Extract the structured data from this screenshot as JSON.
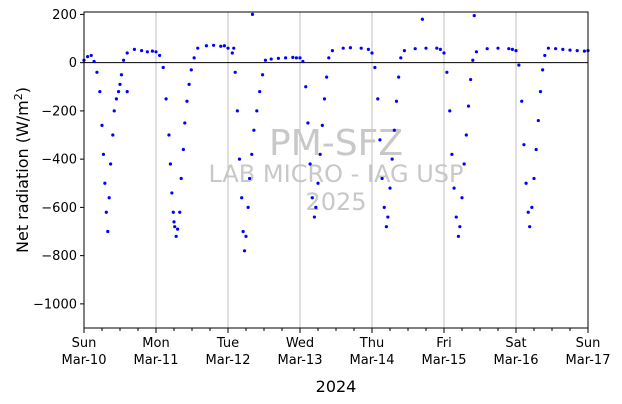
{
  "chart_data": {
    "type": "scatter",
    "title": "",
    "xlabel": "2024",
    "ylabel_main": "Net radiation (W/m",
    "ylabel_sup": "2",
    "ylabel_tail": ")",
    "xlim": [
      0,
      7
    ],
    "ylim": [
      -1100,
      210
    ],
    "x_ticks": [
      {
        "x": 0,
        "day": "Sun",
        "date": "Mar-10"
      },
      {
        "x": 1,
        "day": "Mon",
        "date": "Mar-11"
      },
      {
        "x": 2,
        "day": "Tue",
        "date": "Mar-12"
      },
      {
        "x": 3,
        "day": "Wed",
        "date": "Mar-13"
      },
      {
        "x": 4,
        "day": "Thu",
        "date": "Mar-14"
      },
      {
        "x": 5,
        "day": "Fri",
        "date": "Mar-15"
      },
      {
        "x": 6,
        "day": "Sat",
        "date": "Mar-16"
      },
      {
        "x": 7,
        "day": "Sun",
        "date": "Mar-17"
      }
    ],
    "y_ticks": [
      200,
      0,
      -200,
      -400,
      -600,
      -800,
      -1000
    ],
    "y_tick_labels": [
      "200",
      "0",
      "−200",
      "−400",
      "−600",
      "−800",
      "−1000"
    ],
    "grid": "vertical-major",
    "zero_line": true,
    "marker_color": "#0000ff",
    "watermark": {
      "line1": "PM-SFZ",
      "line2": "LAB MICRO - IAG USP",
      "line3": "2025"
    },
    "series": [
      {
        "values": [
          [
            0.0,
            10
          ],
          [
            0.05,
            25
          ],
          [
            0.1,
            30
          ],
          [
            0.14,
            5
          ],
          [
            0.18,
            -40
          ],
          [
            0.22,
            -120
          ],
          [
            0.25,
            -260
          ],
          [
            0.27,
            -380
          ],
          [
            0.29,
            -500
          ],
          [
            0.31,
            -620
          ],
          [
            0.33,
            -700
          ],
          [
            0.35,
            -560
          ],
          [
            0.37,
            -420
          ],
          [
            0.4,
            -300
          ],
          [
            0.42,
            -200
          ],
          [
            0.45,
            -150
          ],
          [
            0.48,
            -120
          ],
          [
            0.5,
            -90
          ],
          [
            0.52,
            -50
          ],
          [
            0.55,
            10
          ],
          [
            0.6,
            40
          ],
          [
            0.7,
            55
          ],
          [
            0.8,
            50
          ],
          [
            0.88,
            45
          ],
          [
            0.95,
            48
          ],
          [
            1.0,
            45
          ],
          [
            1.05,
            30
          ],
          [
            1.1,
            -20
          ],
          [
            1.14,
            -150
          ],
          [
            1.18,
            -300
          ],
          [
            1.2,
            -420
          ],
          [
            1.22,
            -540
          ],
          [
            1.24,
            -620
          ],
          [
            1.26,
            -680
          ],
          [
            1.28,
            -720
          ],
          [
            1.3,
            -690
          ],
          [
            1.33,
            -620
          ],
          [
            1.35,
            -480
          ],
          [
            1.38,
            -360
          ],
          [
            1.4,
            -250
          ],
          [
            1.43,
            -160
          ],
          [
            1.46,
            -90
          ],
          [
            1.49,
            -30
          ],
          [
            1.53,
            20
          ],
          [
            1.58,
            60
          ],
          [
            1.7,
            70
          ],
          [
            1.8,
            72
          ],
          [
            1.9,
            68
          ],
          [
            1.95,
            70
          ],
          [
            2.0,
            60
          ],
          [
            2.06,
            40
          ],
          [
            2.1,
            -40
          ],
          [
            2.13,
            -200
          ],
          [
            2.16,
            -400
          ],
          [
            2.19,
            -560
          ],
          [
            2.21,
            -700
          ],
          [
            2.23,
            -780
          ],
          [
            2.25,
            -720
          ],
          [
            2.28,
            -600
          ],
          [
            2.3,
            -480
          ],
          [
            2.33,
            -380
          ],
          [
            2.36,
            -280
          ],
          [
            2.4,
            -200
          ],
          [
            2.44,
            -120
          ],
          [
            2.48,
            -50
          ],
          [
            2.52,
            10
          ],
          [
            2.6,
            15
          ],
          [
            2.7,
            18
          ],
          [
            2.8,
            20
          ],
          [
            2.9,
            22
          ],
          [
            2.95,
            20
          ],
          [
            3.0,
            20
          ],
          [
            3.04,
            5
          ],
          [
            3.08,
            -100
          ],
          [
            3.11,
            -250
          ],
          [
            3.14,
            -420
          ],
          [
            3.17,
            -560
          ],
          [
            3.2,
            -640
          ],
          [
            3.22,
            -600
          ],
          [
            3.25,
            -500
          ],
          [
            3.28,
            -380
          ],
          [
            3.31,
            -260
          ],
          [
            3.34,
            -150
          ],
          [
            3.37,
            -60
          ],
          [
            3.4,
            20
          ],
          [
            3.45,
            50
          ],
          [
            3.6,
            60
          ],
          [
            3.7,
            62
          ],
          [
            3.85,
            60
          ],
          [
            3.95,
            55
          ],
          [
            4.0,
            40
          ],
          [
            4.04,
            -20
          ],
          [
            4.08,
            -150
          ],
          [
            4.11,
            -320
          ],
          [
            4.14,
            -480
          ],
          [
            4.17,
            -600
          ],
          [
            4.2,
            -680
          ],
          [
            4.22,
            -640
          ],
          [
            4.25,
            -520
          ],
          [
            4.28,
            -400
          ],
          [
            4.31,
            -280
          ],
          [
            4.34,
            -160
          ],
          [
            4.37,
            -60
          ],
          [
            4.4,
            20
          ],
          [
            4.45,
            50
          ],
          [
            4.6,
            58
          ],
          [
            4.75,
            60
          ],
          [
            4.9,
            60
          ],
          [
            4.95,
            55
          ],
          [
            5.0,
            40
          ],
          [
            5.04,
            -40
          ],
          [
            5.08,
            -200
          ],
          [
            5.11,
            -380
          ],
          [
            5.14,
            -520
          ],
          [
            5.17,
            -640
          ],
          [
            5.2,
            -720
          ],
          [
            5.22,
            -680
          ],
          [
            5.25,
            -560
          ],
          [
            5.28,
            -420
          ],
          [
            5.31,
            -300
          ],
          [
            5.34,
            -180
          ],
          [
            5.37,
            -70
          ],
          [
            5.4,
            10
          ],
          [
            5.45,
            45
          ],
          [
            5.6,
            58
          ],
          [
            5.75,
            60
          ],
          [
            5.9,
            58
          ],
          [
            5.95,
            55
          ],
          [
            6.0,
            50
          ],
          [
            6.04,
            -10
          ],
          [
            6.08,
            -160
          ],
          [
            6.11,
            -340
          ],
          [
            6.14,
            -500
          ],
          [
            6.17,
            -620
          ],
          [
            6.19,
            -680
          ],
          [
            6.22,
            -600
          ],
          [
            6.25,
            -480
          ],
          [
            6.28,
            -360
          ],
          [
            6.31,
            -240
          ],
          [
            6.34,
            -120
          ],
          [
            6.37,
            -30
          ],
          [
            6.4,
            30
          ],
          [
            6.45,
            60
          ],
          [
            6.55,
            58
          ],
          [
            6.65,
            55
          ],
          [
            6.75,
            52
          ],
          [
            6.85,
            50
          ],
          [
            6.95,
            48
          ],
          [
            7.0,
            50
          ],
          [
            0.6,
            -120
          ],
          [
            1.25,
            -660
          ],
          [
            2.08,
            60
          ],
          [
            2.34,
            200
          ],
          [
            4.7,
            180
          ],
          [
            5.42,
            195
          ]
        ]
      }
    ]
  }
}
